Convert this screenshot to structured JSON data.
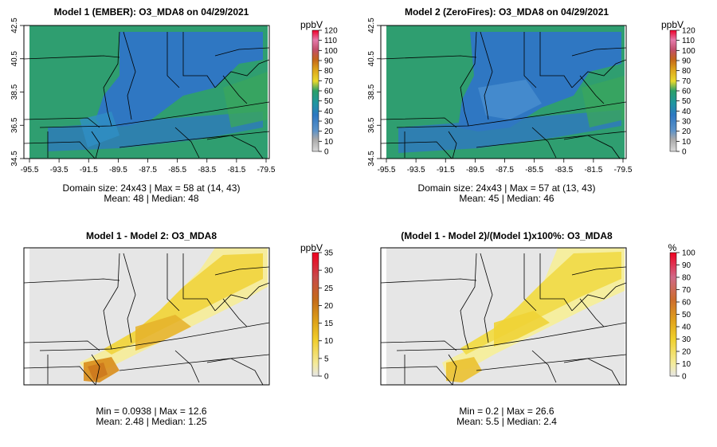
{
  "chart_data": [
    {
      "type": "heatmap",
      "title": "Model 1 (EMBER): O3_MDA8 on 04/29/2021",
      "x_ticks": [
        "-95.5",
        "-93.5",
        "-91.5",
        "-89.5",
        "-87.5",
        "-85.5",
        "-83.5",
        "-81.5",
        "-79.5"
      ],
      "y_ticks": [
        "34.5",
        "36.5",
        "38.5",
        "40.5",
        "42.5"
      ],
      "xlim": [
        -95.5,
        -79.5
      ],
      "ylim": [
        34.5,
        42.5
      ],
      "colorbar_unit": "ppbV",
      "colorbar_ticks": [
        "0",
        "10",
        "20",
        "30",
        "40",
        "50",
        "60",
        "70",
        "80",
        "90",
        "100",
        "110",
        "120"
      ],
      "colorbar_range": [
        0,
        120
      ],
      "stats_line1": "Domain size: 24x43 | Max = 58 at (14, 43)",
      "stats_line2": "Mean: 48 |  Median: 48"
    },
    {
      "type": "heatmap",
      "title": "Model 2 (ZeroFires): O3_MDA8 on 04/29/2021",
      "x_ticks": [
        "-95.5",
        "-93.5",
        "-91.5",
        "-89.5",
        "-87.5",
        "-85.5",
        "-83.5",
        "-81.5",
        "-79.5"
      ],
      "y_ticks": [
        "34.5",
        "36.5",
        "38.5",
        "40.5",
        "42.5"
      ],
      "xlim": [
        -95.5,
        -79.5
      ],
      "ylim": [
        34.5,
        42.5
      ],
      "colorbar_unit": "ppbV",
      "colorbar_ticks": [
        "0",
        "10",
        "20",
        "30",
        "40",
        "50",
        "60",
        "70",
        "80",
        "90",
        "100",
        "110",
        "120"
      ],
      "colorbar_range": [
        0,
        120
      ],
      "stats_line1": "Domain size: 24x43 | Max = 57 at (13, 43)",
      "stats_line2": "Mean: 45 |  Median: 46"
    },
    {
      "type": "heatmap",
      "title": "Model 1 - Model 2: O3_MDA8",
      "colorbar_unit": "ppbV",
      "colorbar_ticks": [
        "0",
        "5",
        "10",
        "15",
        "20",
        "25",
        "30",
        "35"
      ],
      "colorbar_range": [
        0,
        35
      ],
      "stats_line1": "Min = 0.0938 | Max = 12.6",
      "stats_line2": "Mean: 2.48 |  Median: 1.25"
    },
    {
      "type": "heatmap",
      "title": "(Model 1 - Model 2)/(Model 1)x100%: O3_MDA8",
      "colorbar_unit": "%",
      "colorbar_ticks": [
        "0",
        "10",
        "20",
        "30",
        "40",
        "50",
        "60",
        "70",
        "80",
        "90",
        "100"
      ],
      "colorbar_range": [
        0,
        100
      ],
      "stats_line1": "Min = 0.2 | Max = 26.6",
      "stats_line2": "Mean: 5.5 |  Median: 2.4"
    }
  ]
}
